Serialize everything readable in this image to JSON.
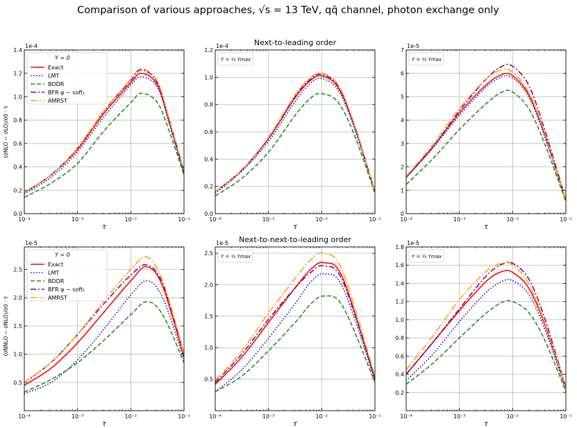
{
  "figure": {
    "suptitle": "Comparison of various approaches, √s = 13 TeV, qq̄ channel, photon exchange only",
    "row_titles": [
      "Next-to-leading order",
      "Next-to-next-to-leading order"
    ],
    "ylabels": [
      "(σNLO − σLO)/σ0 · τ",
      "(σNNLO − σNLO)/σ0 · τ"
    ]
  },
  "legend": {
    "title": "Y = 0",
    "entries": [
      {
        "label": "Exact",
        "color": "#ff0000",
        "style": "solid"
      },
      {
        "label": "LMT",
        "color": "#0000cd",
        "style": "dotted"
      },
      {
        "label": "BDDR",
        "color": "#228b22",
        "style": "dashed"
      },
      {
        "label": "BFR ψ − soft₁",
        "color": "#800080",
        "style": "dashdot"
      },
      {
        "label": "AMRST",
        "color": "#ffa500",
        "style": "longdashdot"
      }
    ]
  },
  "colors": {
    "Exact": "#ff0000",
    "LMT": "#0000cd",
    "BDDR": "#228b22",
    "BFR": "#800080",
    "AMRST": "#ffa500",
    "grid": "#b0b0b0"
  },
  "chart_data": [
    {
      "type": "line",
      "row": 0,
      "col": 0,
      "label": "Y = 0",
      "legend": true,
      "exponent": "1e-4",
      "ylim": [
        0,
        1.4
      ],
      "yticks": [
        "0.0",
        "0.2",
        "0.4",
        "0.6",
        "0.8",
        "1.0",
        "1.2",
        "1.4"
      ],
      "xlabel": "τ",
      "xlog": [
        -4,
        -1
      ],
      "xticks": [
        "10⁻⁴",
        "10⁻³",
        "10⁻²",
        "10⁻¹"
      ],
      "x_log10": [
        -4.0,
        -3.5,
        -3.0,
        -2.5,
        -2.0,
        -1.8,
        -1.5,
        -1.25,
        -1.0
      ],
      "series": [
        {
          "name": "Exact",
          "values": [
            0.18,
            0.33,
            0.55,
            0.86,
            1.12,
            1.2,
            1.1,
            0.74,
            0.35
          ]
        },
        {
          "name": "LMT",
          "values": [
            0.17,
            0.31,
            0.53,
            0.83,
            1.1,
            1.17,
            1.08,
            0.73,
            0.34
          ]
        },
        {
          "name": "BDDR",
          "values": [
            0.14,
            0.26,
            0.43,
            0.71,
            0.95,
            1.03,
            0.95,
            0.67,
            0.33
          ]
        },
        {
          "name": "BFR",
          "values": [
            0.18,
            0.33,
            0.56,
            0.88,
            1.14,
            1.23,
            1.12,
            0.76,
            0.36
          ]
        },
        {
          "name": "AMRST",
          "values": [
            0.18,
            0.33,
            0.56,
            0.88,
            1.15,
            1.24,
            1.13,
            0.76,
            0.36
          ]
        }
      ]
    },
    {
      "type": "line",
      "row": 0,
      "col": 1,
      "label": "Y = ½ Ymax",
      "legend": false,
      "exponent": "1e-4",
      "ylim": [
        0,
        1.2
      ],
      "yticks": [
        "0.0",
        "0.2",
        "0.4",
        "0.6",
        "0.8",
        "1.0",
        "1.2"
      ],
      "xlabel": "τ",
      "xlog": [
        -4,
        -1
      ],
      "xticks": [
        "10⁻⁴",
        "10⁻³",
        "10⁻²",
        "10⁻¹"
      ],
      "x_log10": [
        -4.0,
        -3.5,
        -3.0,
        -2.5,
        -2.2,
        -2.0,
        -1.7,
        -1.4,
        -1.0
      ],
      "series": [
        {
          "name": "Exact",
          "values": [
            0.16,
            0.32,
            0.55,
            0.85,
            0.98,
            1.01,
            0.93,
            0.66,
            0.16
          ]
        },
        {
          "name": "LMT",
          "values": [
            0.15,
            0.31,
            0.53,
            0.82,
            0.96,
            0.99,
            0.91,
            0.64,
            0.16
          ]
        },
        {
          "name": "BDDR",
          "values": [
            0.13,
            0.26,
            0.45,
            0.72,
            0.85,
            0.88,
            0.82,
            0.59,
            0.15
          ]
        },
        {
          "name": "BFR",
          "values": [
            0.16,
            0.32,
            0.55,
            0.86,
            0.99,
            1.02,
            0.94,
            0.66,
            0.16
          ]
        },
        {
          "name": "AMRST",
          "values": [
            0.16,
            0.32,
            0.56,
            0.87,
            1.0,
            1.03,
            0.95,
            0.67,
            0.16
          ]
        }
      ]
    },
    {
      "type": "line",
      "row": 0,
      "col": 2,
      "label": "Y = ⅔ Ymax",
      "legend": false,
      "exponent": "1e-5",
      "ylim": [
        0,
        7
      ],
      "yticks": [
        "0",
        "1",
        "2",
        "3",
        "4",
        "5",
        "6",
        "7"
      ],
      "xlabel": "τ",
      "xlog": [
        -4,
        -1
      ],
      "xticks": [
        "10⁻⁴",
        "10⁻³",
        "10⁻²",
        "10⁻¹"
      ],
      "x_log10": [
        -4.0,
        -3.5,
        -3.0,
        -2.5,
        -2.2,
        -2.0,
        -1.7,
        -1.4,
        -1.0
      ],
      "series": [
        {
          "name": "Exact",
          "values": [
            1.55,
            2.85,
            4.3,
            5.5,
            5.95,
            5.9,
            5.1,
            3.4,
            0.55
          ]
        },
        {
          "name": "LMT",
          "values": [
            1.55,
            2.8,
            4.2,
            5.4,
            5.85,
            5.8,
            5.0,
            3.3,
            0.55
          ]
        },
        {
          "name": "BDDR",
          "values": [
            1.25,
            2.35,
            3.6,
            4.7,
            5.2,
            5.2,
            4.5,
            3.0,
            0.5
          ]
        },
        {
          "name": "BFR",
          "values": [
            1.55,
            2.85,
            4.4,
            5.75,
            6.3,
            6.3,
            5.5,
            3.6,
            0.6
          ]
        },
        {
          "name": "AMRST",
          "values": [
            1.6,
            2.95,
            4.5,
            5.75,
            6.15,
            6.05,
            5.2,
            3.45,
            0.55
          ]
        }
      ]
    },
    {
      "type": "line",
      "row": 1,
      "col": 0,
      "label": "Y = 0",
      "legend": true,
      "exponent": "1e-5",
      "ylim": [
        0.0,
        2.9
      ],
      "yticks": [
        "0.5",
        "1.0",
        "1.5",
        "2.0",
        "2.5"
      ],
      "xlabel": "τ",
      "xlog": [
        -4,
        -1
      ],
      "xticks": [
        "10⁻⁴",
        "10⁻³",
        "10⁻²",
        "10⁻¹"
      ],
      "x_log10": [
        -4.0,
        -3.5,
        -3.0,
        -2.5,
        -2.0,
        -1.7,
        -1.4,
        -1.0
      ],
      "series": [
        {
          "name": "Exact",
          "values": [
            0.45,
            0.75,
            1.2,
            1.75,
            2.3,
            2.55,
            2.2,
            0.95
          ]
        },
        {
          "name": "LMT",
          "values": [
            0.3,
            0.5,
            0.9,
            1.45,
            2.05,
            2.3,
            2.0,
            0.9
          ]
        },
        {
          "name": "BDDR",
          "values": [
            0.33,
            0.55,
            0.85,
            1.25,
            1.7,
            1.93,
            1.7,
            0.85
          ]
        },
        {
          "name": "BFR",
          "values": [
            0.5,
            0.85,
            1.35,
            1.9,
            2.4,
            2.58,
            2.25,
            1.0
          ]
        },
        {
          "name": "AMRST",
          "values": [
            0.5,
            0.85,
            1.35,
            1.95,
            2.5,
            2.72,
            2.3,
            1.0
          ]
        }
      ]
    },
    {
      "type": "line",
      "row": 1,
      "col": 1,
      "label": "Y = ½ Ymax",
      "legend": false,
      "exponent": "1e-5",
      "ylim": [
        0.0,
        2.6
      ],
      "yticks": [
        "0.5",
        "1.0",
        "1.5",
        "2.0",
        "2.5"
      ],
      "xlabel": "τ",
      "xlog": [
        -4,
        -1
      ],
      "xticks": [
        "10⁻⁴",
        "10⁻³",
        "10⁻²",
        "10⁻¹"
      ],
      "x_log10": [
        -4.0,
        -3.5,
        -3.0,
        -2.5,
        -2.2,
        -1.95,
        -1.6,
        -1.0
      ],
      "series": [
        {
          "name": "Exact",
          "values": [
            0.42,
            0.85,
            1.4,
            1.95,
            2.25,
            2.35,
            2.1,
            0.5
          ]
        },
        {
          "name": "LMT",
          "values": [
            0.3,
            0.65,
            1.15,
            1.7,
            2.05,
            2.17,
            1.95,
            0.48
          ]
        },
        {
          "name": "BDDR",
          "values": [
            0.3,
            0.55,
            0.95,
            1.4,
            1.7,
            1.82,
            1.65,
            0.45
          ]
        },
        {
          "name": "BFR",
          "values": [
            0.45,
            0.9,
            1.45,
            1.95,
            2.2,
            2.3,
            2.05,
            0.52
          ]
        },
        {
          "name": "AMRST",
          "values": [
            0.48,
            0.95,
            1.55,
            2.1,
            2.4,
            2.5,
            2.2,
            0.55
          ]
        }
      ]
    },
    {
      "type": "line",
      "row": 1,
      "col": 2,
      "label": "Y = ⅔ Ymax",
      "legend": false,
      "exponent": "1e-5",
      "ylim": [
        0.0,
        1.8
      ],
      "yticks": [
        "0.2",
        "0.4",
        "0.6",
        "0.8",
        "1.0",
        "1.2",
        "1.4",
        "1.6",
        "1.8"
      ],
      "xlabel": "τ",
      "xlog": [
        -4,
        -1
      ],
      "xticks": [
        "10⁻⁴",
        "10⁻³",
        "10⁻²",
        "10⁻¹"
      ],
      "x_log10": [
        -4.0,
        -3.5,
        -3.0,
        -2.5,
        -2.2,
        -2.0,
        -1.7,
        -1.4,
        -1.0
      ],
      "series": [
        {
          "name": "Exact",
          "values": [
            0.4,
            0.75,
            1.1,
            1.42,
            1.53,
            1.52,
            1.35,
            0.95,
            0.24
          ]
        },
        {
          "name": "LMT",
          "values": [
            0.33,
            0.62,
            0.98,
            1.3,
            1.42,
            1.43,
            1.28,
            0.9,
            0.23
          ]
        },
        {
          "name": "BDDR",
          "values": [
            0.29,
            0.52,
            0.8,
            1.07,
            1.19,
            1.2,
            1.08,
            0.78,
            0.21
          ]
        },
        {
          "name": "BFR",
          "values": [
            0.4,
            0.75,
            1.12,
            1.48,
            1.61,
            1.62,
            1.45,
            1.02,
            0.25
          ]
        },
        {
          "name": "AMRST",
          "values": [
            0.45,
            0.82,
            1.22,
            1.53,
            1.62,
            1.6,
            1.4,
            0.97,
            0.24
          ]
        }
      ]
    }
  ]
}
